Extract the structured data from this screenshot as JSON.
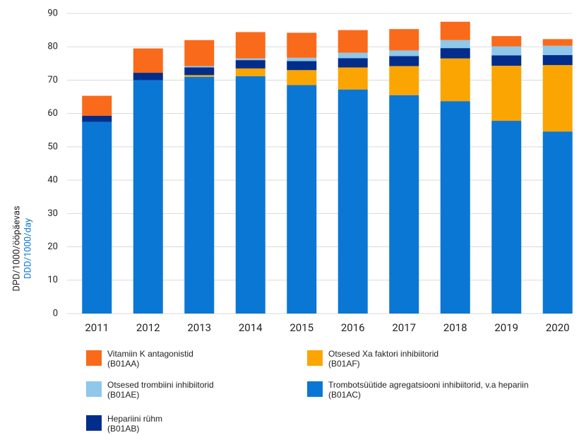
{
  "chart_data": {
    "type": "stacked_bar",
    "y_label": "DPD/1000/ööpäevas",
    "y_label_en": "DDD/1000/day",
    "categories": [
      "2011",
      "2012",
      "2013",
      "2014",
      "2015",
      "2016",
      "2017",
      "2018",
      "2019",
      "2020"
    ],
    "series": [
      {
        "name": "Trombotsüütide agregatsiooni inhibiitorid, v.a hepariin\n(B01AC)",
        "color": "#0a77d5",
        "values": [
          57.5,
          70,
          71,
          71.2,
          68.5,
          67.2,
          65.5,
          63.7,
          57.8,
          54.6
        ]
      },
      {
        "name": "Otsesed Xa faktori inhibiitorid\n(B01AF)",
        "color": "#fba502",
        "values": [
          0,
          0,
          0.5,
          2.3,
          4.5,
          6.6,
          8.7,
          12.8,
          16.5,
          19.9
        ]
      },
      {
        "name": "Hepariini rühm\n(B01AB)",
        "color": "#032d8a",
        "values": [
          1.8,
          2.2,
          2.3,
          2.5,
          2.7,
          2.8,
          3,
          3.1,
          3.1,
          3
        ]
      },
      {
        "name": "Otsesed trombiini inhibiitorid\n(B01AE)",
        "color": "#8ec8ea",
        "values": [
          0,
          0,
          0.4,
          0.5,
          1,
          1.6,
          1.7,
          2.4,
          2.7,
          2.8
        ]
      },
      {
        "name": "Vitamiin K antagonistid\n(B01AA)",
        "color": "#f96a1b",
        "values": [
          6,
          7.3,
          7.8,
          7.9,
          7.5,
          6.8,
          6.4,
          5.5,
          3.1,
          2
        ]
      }
    ],
    "ylim": [
      0,
      90
    ],
    "yticks": [
      0,
      10,
      20,
      30,
      40,
      50,
      60,
      70,
      80,
      90
    ],
    "grid": true
  }
}
